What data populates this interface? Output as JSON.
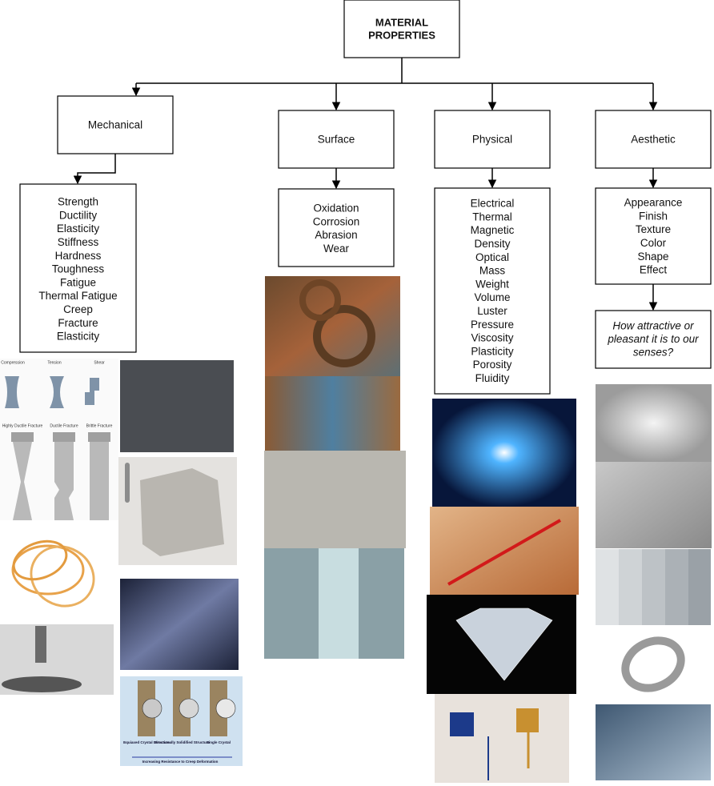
{
  "root": {
    "lines": [
      "MATERIAL",
      "PROPERTIES"
    ]
  },
  "categories": [
    {
      "label": "Mechanical",
      "items": [
        "Strength",
        "Ductility",
        "Elasticity",
        "Stiffness",
        "Hardness",
        "Toughness",
        "Fatigue",
        "Thermal Fatigue",
        "Creep",
        "Fracture",
        "Elasticity"
      ]
    },
    {
      "label": "Surface",
      "items": [
        "Oxidation",
        "Corrosion",
        "Abrasion",
        "Wear"
      ]
    },
    {
      "label": "Physical",
      "items": [
        "Electrical",
        "Thermal",
        "Magnetic",
        "Density",
        "Optical",
        "Mass",
        "Weight",
        "Volume",
        "Luster",
        "Pressure",
        "Viscosity",
        "Plasticity",
        "Porosity",
        "Fluidity"
      ]
    },
    {
      "label": "Aesthetic",
      "items": [
        "Appearance",
        "Finish",
        "Texture",
        "Color",
        "Shape",
        "Effect"
      ]
    }
  ],
  "aesthetic_question": {
    "lines": [
      "How attractive or",
      "pleasant it is to our",
      "senses?"
    ]
  },
  "image_labels": {
    "stress": [
      "Compression",
      "Tension",
      "Shear"
    ],
    "fracture": [
      "Highly Ductile Fracture",
      "Ductile Fracture",
      "Brittle Fracture"
    ],
    "creep": [
      "Equiaxed Crystal Structure",
      "Directionally Solidified Structure",
      "Single Crystal",
      "Increasing Resistance to Creep Deformation"
    ]
  }
}
